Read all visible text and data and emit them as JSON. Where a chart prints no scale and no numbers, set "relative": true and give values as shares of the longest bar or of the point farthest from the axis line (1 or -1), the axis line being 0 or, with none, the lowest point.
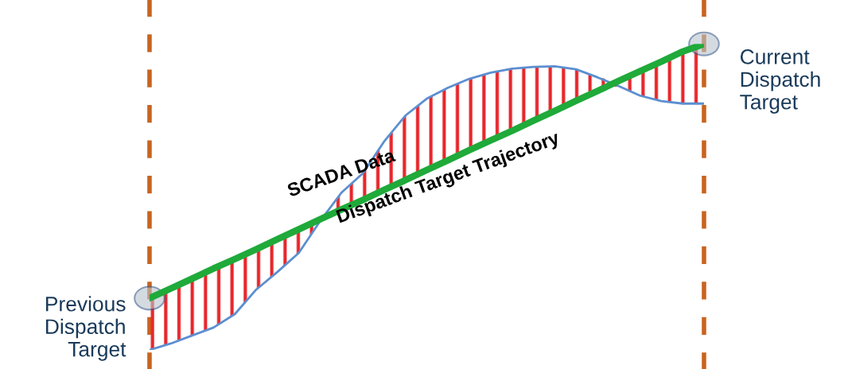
{
  "chart_data": {
    "type": "line",
    "relative": true,
    "categories": [
      null,
      null,
      null,
      null,
      null,
      null,
      null,
      null,
      null,
      null,
      null,
      null,
      null,
      null,
      null,
      null,
      null,
      null,
      null,
      null,
      null,
      null,
      null,
      null,
      null,
      null,
      null
    ],
    "series": [
      {
        "name": "SCADA Data",
        "color": "#5b8fd0",
        "values": [
          0,
          0.021,
          0.047,
          0.073,
          0.117,
          0.197,
          0.255,
          0.317,
          0.421,
          0.514,
          0.577,
          0.681,
          0.766,
          0.821,
          0.857,
          0.886,
          0.906,
          0.919,
          0.925,
          0.927,
          0.917,
          0.891,
          0.862,
          0.831,
          0.813,
          0.805,
          0.805
        ]
      },
      {
        "name": "Dispatch Target Trajectory",
        "color": "#1faa3a",
        "values": [
          0.169,
          0.201,
          0.233,
          0.266,
          0.297,
          0.329,
          0.362,
          0.394,
          0.427,
          0.459,
          0.49,
          0.523,
          0.555,
          0.588,
          0.62,
          0.653,
          0.685,
          0.716,
          0.749,
          0.781,
          0.814,
          0.846,
          0.879,
          0.911,
          0.942,
          0.975,
          1
        ],
        "lower": [
          0,
          0.021,
          0.047,
          0.073,
          0.117,
          0.197,
          0.255,
          0.317,
          0.421,
          0.459,
          0.49,
          0.523,
          0.555,
          0.588,
          0.62,
          0.653,
          0.685,
          0.716,
          0.749,
          0.781,
          0.814,
          0.846,
          0.862,
          0.831,
          0.813,
          0.805,
          0.805
        ],
        "upper": [
          0.169,
          0.201,
          0.233,
          0.266,
          0.297,
          0.329,
          0.362,
          0.394,
          0.427,
          0.514,
          0.577,
          0.681,
          0.766,
          0.821,
          0.857,
          0.886,
          0.906,
          0.919,
          0.925,
          0.927,
          0.917,
          0.891,
          0.879,
          0.911,
          0.942,
          0.975,
          1
        ]
      }
    ],
    "annotations": [
      "Previous\nDispatch\nTarget",
      "Current\nDispatch\nTarget"
    ],
    "legend": false
  }
}
